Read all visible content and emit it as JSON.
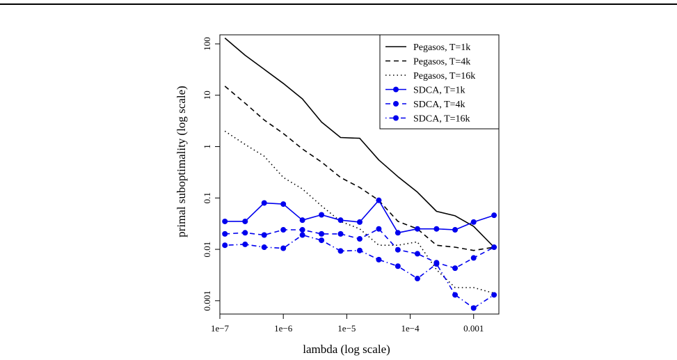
{
  "chart_data": {
    "type": "line",
    "xlabel": "lambda (log scale)",
    "ylabel": "primal suboptimality (log scale)",
    "x_scale": "log",
    "y_scale": "log",
    "xlim": [
      1e-07,
      0.0025
    ],
    "ylim": [
      0.00055,
      150
    ],
    "x_ticks": [
      {
        "value": 1e-07,
        "label": "1e−7"
      },
      {
        "value": 1e-06,
        "label": "1e−6"
      },
      {
        "value": 1e-05,
        "label": "1e−5"
      },
      {
        "value": 0.0001,
        "label": "1e−4"
      },
      {
        "value": 0.001,
        "label": "0.001"
      }
    ],
    "y_ticks": [
      {
        "value": 100,
        "label": "100"
      },
      {
        "value": 10,
        "label": "10"
      },
      {
        "value": 1,
        "label": "1"
      },
      {
        "value": 0.1,
        "label": "0.1"
      },
      {
        "value": 0.01,
        "label": "0.01"
      },
      {
        "value": 0.001,
        "label": "0.001"
      }
    ],
    "legend_position": "top-right",
    "grid": false,
    "x": [
      1.2e-07,
      2.5e-07,
      5e-07,
      1e-06,
      2e-06,
      4e-06,
      8e-06,
      1.6e-05,
      3.2e-05,
      6.4e-05,
      0.00013,
      0.00026,
      0.00051,
      0.001,
      0.0021
    ],
    "series": [
      {
        "name": "Pegasos, T=1k",
        "color": "#000000",
        "dash": "solid",
        "marker": false,
        "values": [
          130,
          60,
          32,
          17,
          8.5,
          3.0,
          1.5,
          1.45,
          0.55,
          0.26,
          0.13,
          0.055,
          0.045,
          0.028,
          0.011
        ]
      },
      {
        "name": "Pegasos, T=4k",
        "color": "#000000",
        "dash": "dashed",
        "marker": false,
        "values": [
          15,
          7,
          3.3,
          1.8,
          0.9,
          0.5,
          0.25,
          0.16,
          0.09,
          0.035,
          0.025,
          0.012,
          0.011,
          0.0095,
          0.011
        ]
      },
      {
        "name": "Pegasos, T=16k",
        "color": "#000000",
        "dash": "dotted",
        "marker": false,
        "values": [
          2.0,
          1.1,
          0.65,
          0.25,
          0.15,
          0.07,
          0.035,
          0.025,
          0.012,
          0.012,
          0.014,
          0.004,
          0.0018,
          0.0018,
          0.0014
        ]
      },
      {
        "name": "SDCA, T=1k",
        "color": "#0000ee",
        "dash": "solid",
        "marker": true,
        "values": [
          0.035,
          0.035,
          0.08,
          0.076,
          0.037,
          0.047,
          0.037,
          0.034,
          0.09,
          0.021,
          0.025,
          0.025,
          0.024,
          0.034,
          0.046
        ]
      },
      {
        "name": "SDCA, T=4k",
        "color": "#0000ee",
        "dash": "dashed",
        "marker": true,
        "values": [
          0.02,
          0.021,
          0.019,
          0.024,
          0.024,
          0.02,
          0.02,
          0.016,
          0.025,
          0.0098,
          0.0082,
          0.0055,
          0.0043,
          0.0068,
          0.011
        ]
      },
      {
        "name": "SDCA, T=16k",
        "color": "#0000ee",
        "dash": "dotdash",
        "marker": true,
        "values": [
          0.012,
          0.0125,
          0.011,
          0.0105,
          0.019,
          0.015,
          0.0093,
          0.0095,
          0.0063,
          0.0047,
          0.0027,
          0.0052,
          0.0013,
          0.00072,
          0.0013
        ]
      }
    ]
  }
}
